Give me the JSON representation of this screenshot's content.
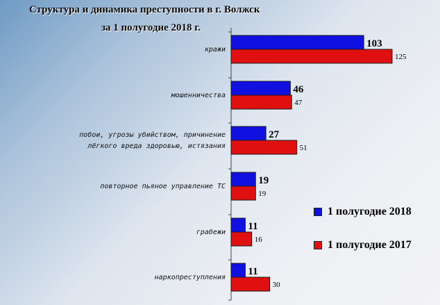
{
  "title": {
    "line1": "Структура и динамика преступности в г. Волжск",
    "line2": "за 1 полугодие 2018 г."
  },
  "colors": {
    "series_2018": "#1010e0",
    "series_2017": "#e01010"
  },
  "chart_data": {
    "type": "bar",
    "orientation": "horizontal",
    "title": "Структура и динамика преступности в г. Волжск за 1 полугодие 2018 г.",
    "categories": [
      [
        "кражи"
      ],
      [
        "мошенничества"
      ],
      [
        "побои, угрозы убийством, причинение",
        "лёгкого вреда здоровью, истязания"
      ],
      [
        "повторное пьяное управление ТС"
      ],
      [
        "грабежи"
      ],
      [
        "наркопреступления"
      ]
    ],
    "series": [
      {
        "name": "1 полугодие 2018",
        "values": [
          103,
          46,
          27,
          19,
          11,
          11
        ]
      },
      {
        "name": "1 полугодие 2017",
        "values": [
          125,
          47,
          51,
          19,
          16,
          30
        ]
      }
    ],
    "xlim": [
      0,
      125
    ],
    "grid": false,
    "legend_position": "bottom-right"
  }
}
